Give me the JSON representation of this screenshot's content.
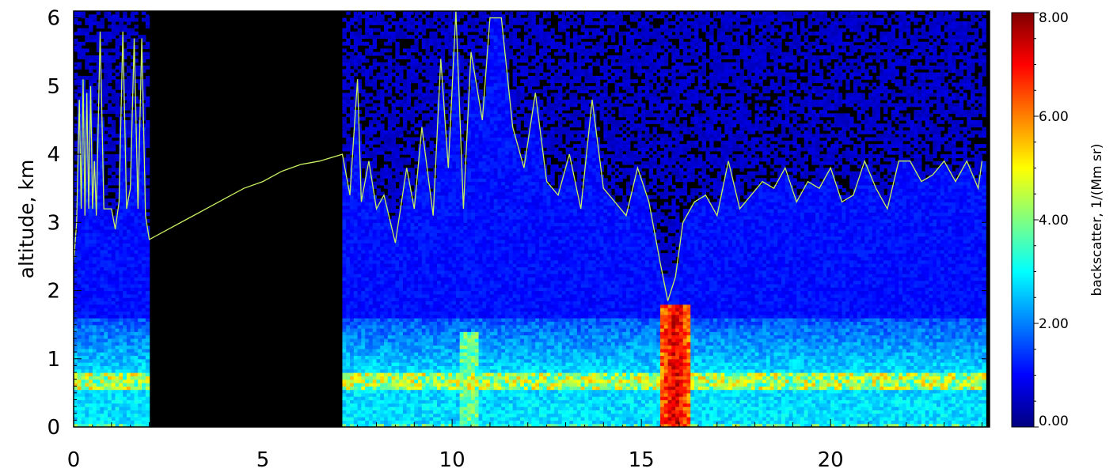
{
  "chart_data": {
    "type": "heatmap",
    "title": "",
    "xlabel": "",
    "ylabel": "altitude,  km",
    "xlim": [
      0,
      24.2
    ],
    "ylim": [
      0,
      6.1
    ],
    "x_ticks": [
      0,
      5,
      10,
      15,
      20
    ],
    "x_tick_labels": [
      "0",
      "5",
      "10",
      "15",
      "20"
    ],
    "y_ticks": [
      0,
      1,
      2,
      3,
      4,
      5,
      6
    ],
    "y_tick_labels": [
      "0",
      "1",
      "2",
      "3",
      "4",
      "5",
      "6"
    ],
    "colorbar": {
      "label": "backscatter,  1/(Mm sr)",
      "min": 0,
      "max": 8,
      "ticks": [
        0,
        2,
        4,
        6,
        8
      ],
      "tick_labels": [
        "0.00",
        "2.00",
        "4.00",
        "6.00",
        "8.00"
      ],
      "colormap": [
        "#000080",
        "#0000ff",
        "#0080ff",
        "#00ffff",
        "#80ff80",
        "#ffff00",
        "#ff8000",
        "#ff0000",
        "#800000"
      ]
    },
    "missing_data_intervals": [
      [
        2.0,
        7.1
      ]
    ],
    "series": [
      {
        "type": "line",
        "color": "#c8f060",
        "x": [
          0.0,
          0.08,
          0.15,
          0.2,
          0.25,
          0.3,
          0.35,
          0.4,
          0.45,
          0.5,
          0.55,
          0.6,
          0.7,
          0.8,
          0.9,
          1.0,
          1.1,
          1.2,
          1.3,
          1.4,
          1.5,
          1.6,
          1.7,
          1.8,
          1.9,
          2.0,
          2.5,
          3.0,
          3.5,
          4.0,
          4.5,
          5.0,
          5.5,
          6.0,
          6.5,
          7.1,
          7.3,
          7.5,
          7.6,
          7.8,
          8.0,
          8.2,
          8.5,
          8.8,
          9.0,
          9.2,
          9.5,
          9.7,
          9.9,
          10.1,
          10.3,
          10.5,
          10.8,
          11.0,
          11.3,
          11.6,
          11.9,
          12.2,
          12.5,
          12.8,
          13.1,
          13.4,
          13.7,
          14.0,
          14.3,
          14.6,
          14.9,
          15.2,
          15.5,
          15.7,
          15.9,
          16.1,
          16.4,
          16.7,
          17.0,
          17.3,
          17.6,
          17.9,
          18.2,
          18.5,
          18.8,
          19.1,
          19.4,
          19.7,
          20.0,
          20.3,
          20.6,
          20.9,
          21.2,
          21.5,
          21.8,
          22.1,
          22.4,
          22.7,
          23.0,
          23.3,
          23.6,
          23.9,
          24.0
        ],
        "y": [
          2.4,
          3.0,
          4.8,
          3.2,
          5.1,
          3.1,
          4.9,
          3.2,
          5.0,
          3.2,
          3.9,
          3.1,
          5.8,
          3.2,
          3.2,
          3.2,
          2.9,
          3.3,
          5.8,
          3.2,
          3.5,
          5.7,
          3.2,
          5.7,
          3.1,
          2.75,
          2.9,
          3.05,
          3.2,
          3.35,
          3.5,
          3.6,
          3.75,
          3.85,
          3.9,
          4.0,
          3.4,
          5.1,
          3.3,
          3.9,
          3.2,
          3.4,
          2.7,
          3.8,
          3.2,
          4.4,
          3.1,
          5.4,
          3.8,
          6.1,
          3.2,
          5.5,
          4.5,
          6.0,
          6.0,
          4.4,
          3.8,
          4.9,
          3.6,
          3.4,
          4.0,
          3.2,
          4.8,
          3.5,
          3.3,
          3.1,
          3.8,
          3.3,
          2.4,
          1.85,
          2.2,
          3.0,
          3.3,
          3.4,
          3.1,
          3.9,
          3.2,
          3.4,
          3.6,
          3.5,
          3.8,
          3.3,
          3.6,
          3.5,
          3.8,
          3.3,
          3.4,
          3.9,
          3.5,
          3.2,
          3.9,
          3.9,
          3.6,
          3.7,
          3.9,
          3.6,
          3.9,
          3.5,
          3.9
        ]
      }
    ]
  }
}
